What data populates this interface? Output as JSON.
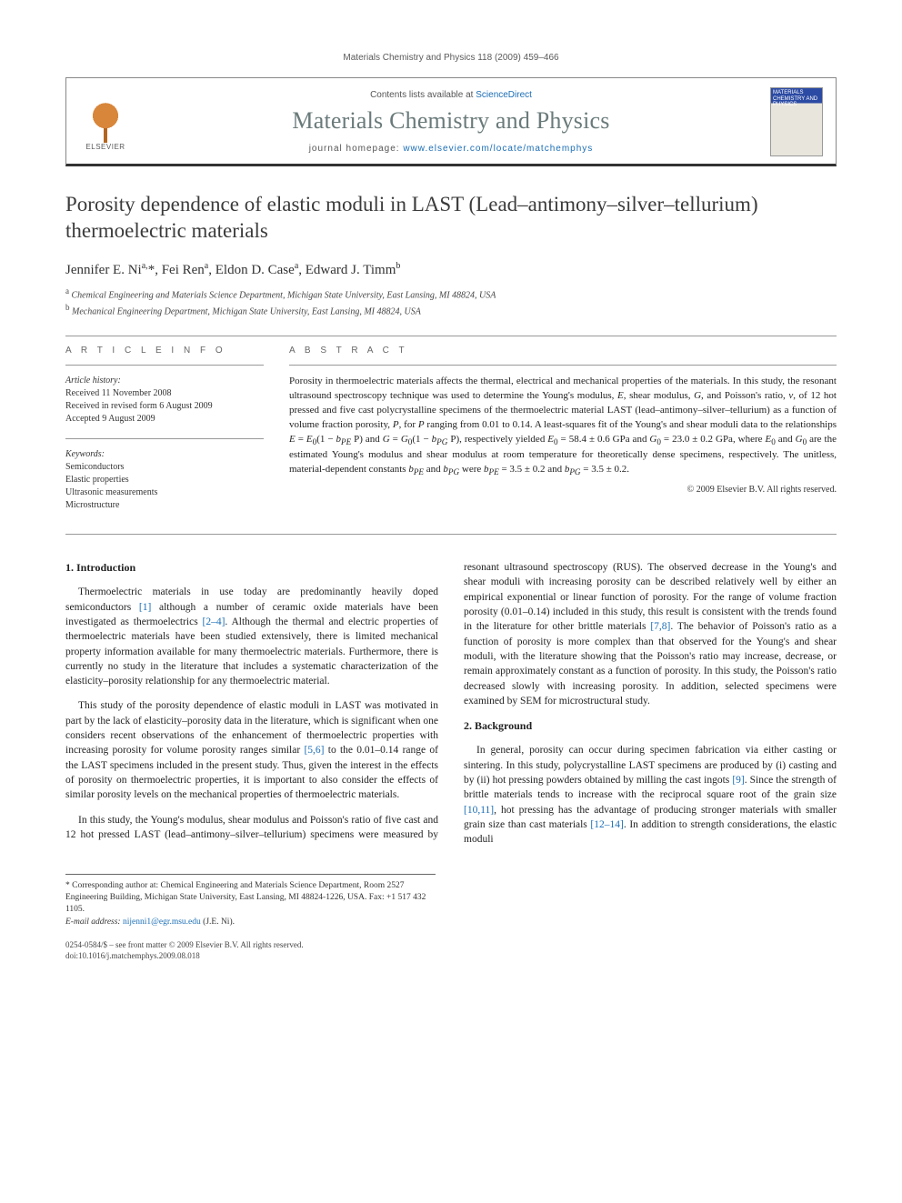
{
  "running_head": "Materials Chemistry and Physics 118 (2009) 459–466",
  "banner": {
    "contents_prefix": "Contents lists available at ",
    "contents_link": "ScienceDirect",
    "journal_title": "Materials Chemistry and Physics",
    "homepage_prefix": "journal homepage: ",
    "homepage_url": "www.elsevier.com/locate/matchemphys",
    "elsevier_label": "ELSEVIER",
    "cover_line1": "MATERIALS",
    "cover_line2": "CHEMISTRY AND",
    "cover_line3": "PHYSICS"
  },
  "title": "Porosity dependence of elastic moduli in LAST (Lead–antimony–silver–tellurium) thermoelectric materials",
  "authors_html": "Jennifer E. Ni<sup>a,</sup><span class='star'>*</span>, Fei Ren<sup>a</sup>, Eldon D. Case<sup>a</sup>, Edward J. Timm<sup>b</sup>",
  "affiliations": {
    "a": "Chemical Engineering and Materials Science Department, Michigan State University, East Lansing, MI 48824, USA",
    "b": "Mechanical Engineering Department, Michigan State University, East Lansing, MI 48824, USA"
  },
  "labels": {
    "article_info": "A R T I C L E   I N F O",
    "abstract": "A B S T R A C T"
  },
  "history": {
    "head": "Article history:",
    "received": "Received 11 November 2008",
    "revised": "Received in revised form 6 August 2009",
    "accepted": "Accepted 9 August 2009"
  },
  "keywords": {
    "head": "Keywords:",
    "items": [
      "Semiconductors",
      "Elastic properties",
      "Ultrasonic measurements",
      "Microstructure"
    ]
  },
  "abstract": "Porosity in thermoelectric materials affects the thermal, electrical and mechanical properties of the materials. In this study, the resonant ultrasound spectroscopy technique was used to determine the Young's modulus, E, shear modulus, G, and Poisson's ratio, ν, of 12 hot pressed and five cast polycrystalline specimens of the thermoelectric material LAST (lead–antimony–silver–tellurium) as a function of volume fraction porosity, P, for P ranging from 0.01 to 0.14. A least-squares fit of the Young's and shear moduli data to the relationships E = E₀(1 − b_PE P) and G = G₀(1 − b_PG P), respectively yielded E₀ = 58.4 ± 0.6 GPa and G₀ = 23.0 ± 0.2 GPa, where E₀ and G₀ are the estimated Young's modulus and shear modulus at room temperature for theoretically dense specimens, respectively. The unitless, material-dependent constants b_PE and b_PG were b_PE = 3.5 ± 0.2 and b_PG = 3.5 ± 0.2.",
  "copyright": "© 2009 Elsevier B.V. All rights reserved.",
  "sections": {
    "intro_head": "1.  Introduction",
    "intro_p1": "Thermoelectric materials in use today are predominantly heavily doped semiconductors [1] although a number of ceramic oxide materials have been investigated as thermoelectrics [2–4]. Although the thermal and electric properties of thermoelectric materials have been studied extensively, there is limited mechanical property information available for many thermoelectric materials. Furthermore, there is currently no study in the literature that includes a systematic characterization of the elasticity–porosity relationship for any thermoelectric material.",
    "intro_p2": "This study of the porosity dependence of elastic moduli in LAST was motivated in part by the lack of elasticity–porosity data in the literature, which is significant when one considers recent observations of the enhancement of thermoelectric properties with increasing porosity for volume porosity ranges similar [5,6] to the 0.01–0.14 range of the LAST specimens included in the present study. Thus, given the interest in the effects of porosity on thermoelectric properties, it is important to also consider the effects of similar porosity levels on the mechanical properties of thermoelectric materials.",
    "intro_p3": "In this study, the Young's modulus, shear modulus and Poisson's ratio of five cast and 12 hot pressed LAST (lead–antimony–silver–tellurium) specimens were measured by resonant ultrasound spectroscopy (RUS). The observed decrease in the Young's and shear moduli with increasing porosity can be described relatively well by either an empirical exponential or linear function of porosity. For the range of volume fraction porosity (0.01–0.14) included in this study, this result is consistent with the trends found in the literature for other brittle materials [7,8]. The behavior of Poisson's ratio as a function of porosity is more complex than that observed for the Young's and shear moduli, with the literature showing that the Poisson's ratio may increase, decrease, or remain approximately constant as a function of porosity. In this study, the Poisson's ratio decreased slowly with increasing porosity. In addition, selected specimens were examined by SEM for microstructural study.",
    "bg_head": "2.  Background",
    "bg_p1": "In general, porosity can occur during specimen fabrication via either casting or sintering. In this study, polycrystalline LAST specimens are produced by (i) casting and by (ii) hot pressing powders obtained by milling the cast ingots [9]. Since the strength of brittle materials tends to increase with the reciprocal square root of the grain size [10,11], hot pressing has the advantage of producing stronger materials with smaller grain size than cast materials [12–14]. In addition to strength considerations, the elastic moduli"
  },
  "footnote": {
    "corr": "* Corresponding author at: Chemical Engineering and Materials Science Department, Room 2527 Engineering Building, Michigan State University, East Lansing, MI 48824-1226, USA. Fax: +1 517 432 1105.",
    "email_label": "E-mail address: ",
    "email": "nijenni1@egr.msu.edu",
    "email_suffix": " (J.E. Ni)."
  },
  "footer": {
    "line1": "0254-0584/$ – see front matter © 2009 Elsevier B.V. All rights reserved.",
    "line2": "doi:10.1016/j.matchemphys.2009.08.018"
  },
  "refs": {
    "r1": "[1]",
    "r24": "[2–4]",
    "r56": "[5,6]",
    "r78": "[7,8]",
    "r9": "[9]",
    "r1011": "[10,11]",
    "r1214": "[12–14]"
  }
}
